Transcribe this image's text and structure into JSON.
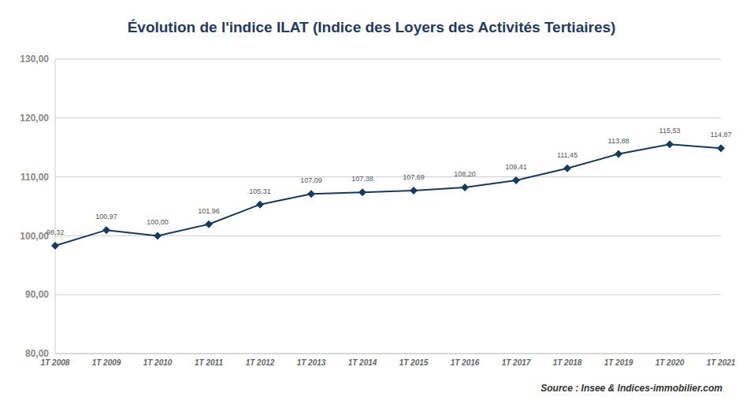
{
  "chart_data": {
    "type": "line",
    "title": "Évolution de l'indice ILAT (Indice des Loyers des Activités Tertiaires)",
    "annotations": [
      "Source : Insee & Indices-immobilier.com"
    ],
    "categories": [
      "1T 2008",
      "1T 2009",
      "1T 2010",
      "1T 2011",
      "1T 2012",
      "1T 2013",
      "1T 2014",
      "1T 2015",
      "1T 2016",
      "1T 2017",
      "1T 2018",
      "1T 2019",
      "1T 2020",
      "1T 2021"
    ],
    "values": [
      98.32,
      100.97,
      100.0,
      101.96,
      105.31,
      107.09,
      107.38,
      107.69,
      108.2,
      109.41,
      111.45,
      113.88,
      115.53,
      114.87
    ],
    "value_labels": [
      "98,32",
      "100,97",
      "100,00",
      "101,96",
      "105,31",
      "107,09",
      "107,38",
      "107,69",
      "108,20",
      "109,41",
      "111,45",
      "113,88",
      "115,53",
      "114,87"
    ],
    "color": "#163a5f",
    "marker": "diamond",
    "data_labels": true,
    "grid": true,
    "ylim": [
      80,
      130
    ],
    "yticks": [
      {
        "value": 80,
        "label": "80,00"
      },
      {
        "value": 90,
        "label": "90,00"
      },
      {
        "value": 100,
        "label": "100,00"
      },
      {
        "value": 110,
        "label": "110,00"
      },
      {
        "value": 120,
        "label": "120,00"
      },
      {
        "value": 130,
        "label": "130,00"
      }
    ]
  }
}
